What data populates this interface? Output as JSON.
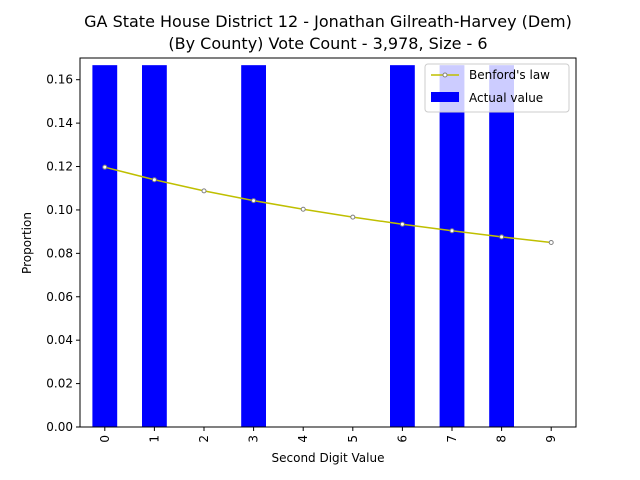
{
  "chart_data": {
    "type": "bar",
    "title_lines": [
      "GA State House District 12 - Jonathan Gilreath-Harvey (Dem)",
      "(By County) Vote Count - 3,978, Size - 6"
    ],
    "xlabel": "Second Digit Value",
    "ylabel": "Proportion",
    "categories": [
      "0",
      "1",
      "2",
      "3",
      "4",
      "5",
      "6",
      "7",
      "8",
      "9"
    ],
    "ylim": [
      0,
      0.17
    ],
    "yticks": [
      "0.00",
      "0.02",
      "0.04",
      "0.06",
      "0.08",
      "0.10",
      "0.12",
      "0.14",
      "0.16"
    ],
    "legend_position": "top-right",
    "series": [
      {
        "name": "Actual value",
        "kind": "bar",
        "color": "#0000ff",
        "values": [
          0.1667,
          0.1667,
          0.0,
          0.1667,
          0.0,
          0.0,
          0.1667,
          0.1667,
          0.1667,
          0.0
        ]
      },
      {
        "name": "Benford's law",
        "kind": "line",
        "color": "#bfbf00",
        "marker_color": "#808080",
        "values": [
          0.1197,
          0.1139,
          0.1088,
          0.1043,
          0.1003,
          0.0967,
          0.0934,
          0.0904,
          0.0876,
          0.085
        ]
      }
    ]
  }
}
